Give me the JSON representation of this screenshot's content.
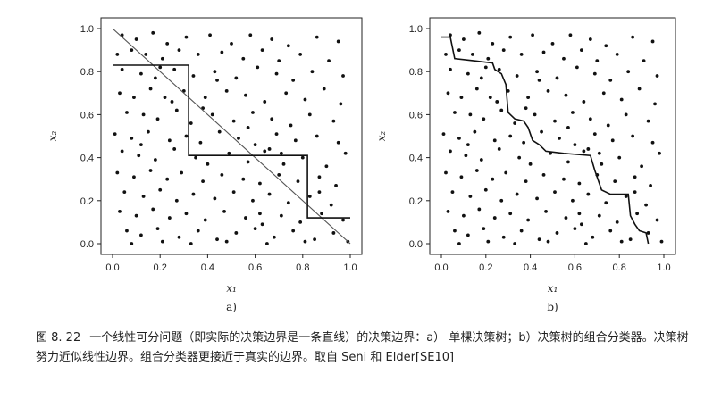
{
  "figure": {
    "number": "图 8. 22",
    "caption": "一个线性可分问题（即实际的决策边界是一条直线）的决策边界：a） 单棵决策树；b）决策树的组合分类器。决策树努力近似线性边界。组合分类器更接近于真实的边界。取自 Seni 和 Elder[SE10]"
  },
  "chart_data": [
    {
      "type": "scatter",
      "panel_label": "a)",
      "xlabel": "x₁",
      "ylabel": "x₂",
      "xlim": [
        0.0,
        1.0
      ],
      "ylim": [
        0.0,
        1.0
      ],
      "xticks": [
        "0.0",
        "0.2",
        "0.4",
        "0.6",
        "0.8",
        "1.0"
      ],
      "yticks": [
        "0.0",
        "0.2",
        "0.4",
        "0.6",
        "0.8",
        "1.0"
      ],
      "grid": false,
      "true_boundary": [
        [
          0.0,
          1.0
        ],
        [
          1.0,
          0.0
        ]
      ],
      "decision_boundary": [
        [
          0.0,
          0.83
        ],
        [
          0.32,
          0.83
        ],
        [
          0.32,
          0.41
        ],
        [
          0.82,
          0.41
        ],
        [
          0.82,
          0.12
        ],
        [
          1.0,
          0.12
        ]
      ]
    },
    {
      "type": "scatter",
      "panel_label": "b)",
      "xlabel": "x₁",
      "ylabel": "x₂",
      "xlim": [
        0.0,
        1.0
      ],
      "ylim": [
        0.0,
        1.0
      ],
      "xticks": [
        "0.0",
        "0.2",
        "0.4",
        "0.6",
        "0.8",
        "1.0"
      ],
      "yticks": [
        "0.0",
        "0.2",
        "0.4",
        "0.6",
        "0.8",
        "1.0"
      ],
      "grid": false,
      "decision_boundary": [
        [
          0.0,
          0.96
        ],
        [
          0.04,
          0.96
        ],
        [
          0.06,
          0.86
        ],
        [
          0.15,
          0.85
        ],
        [
          0.23,
          0.84
        ],
        [
          0.24,
          0.81
        ],
        [
          0.27,
          0.79
        ],
        [
          0.29,
          0.74
        ],
        [
          0.3,
          0.61
        ],
        [
          0.33,
          0.58
        ],
        [
          0.37,
          0.57
        ],
        [
          0.39,
          0.54
        ],
        [
          0.41,
          0.48
        ],
        [
          0.44,
          0.46
        ],
        [
          0.47,
          0.43
        ],
        [
          0.55,
          0.42
        ],
        [
          0.67,
          0.41
        ],
        [
          0.69,
          0.34
        ],
        [
          0.72,
          0.25
        ],
        [
          0.76,
          0.23
        ],
        [
          0.84,
          0.23
        ],
        [
          0.85,
          0.13
        ],
        [
          0.87,
          0.09
        ],
        [
          0.89,
          0.06
        ],
        [
          0.92,
          0.05
        ],
        [
          0.93,
          0.0
        ]
      ]
    }
  ],
  "points": [
    [
      0.04,
      0.97
    ],
    [
      0.1,
      0.95
    ],
    [
      0.17,
      0.98
    ],
    [
      0.23,
      0.93
    ],
    [
      0.31,
      0.96
    ],
    [
      0.41,
      0.97
    ],
    [
      0.5,
      0.93
    ],
    [
      0.58,
      0.97
    ],
    [
      0.67,
      0.95
    ],
    [
      0.74,
      0.92
    ],
    [
      0.86,
      0.96
    ],
    [
      0.95,
      0.94
    ],
    [
      0.02,
      0.88
    ],
    [
      0.08,
      0.9
    ],
    [
      0.14,
      0.88
    ],
    [
      0.21,
      0.86
    ],
    [
      0.28,
      0.9
    ],
    [
      0.36,
      0.88
    ],
    [
      0.46,
      0.89
    ],
    [
      0.55,
      0.86
    ],
    [
      0.63,
      0.9
    ],
    [
      0.7,
      0.85
    ],
    [
      0.79,
      0.88
    ],
    [
      0.91,
      0.85
    ],
    [
      0.04,
      0.81
    ],
    [
      0.12,
      0.79
    ],
    [
      0.18,
      0.77
    ],
    [
      0.26,
      0.81
    ],
    [
      0.34,
      0.78
    ],
    [
      0.43,
      0.8
    ],
    [
      0.52,
      0.77
    ],
    [
      0.61,
      0.82
    ],
    [
      0.69,
      0.79
    ],
    [
      0.76,
      0.76
    ],
    [
      0.84,
      0.8
    ],
    [
      0.97,
      0.78
    ],
    [
      0.03,
      0.7
    ],
    [
      0.09,
      0.68
    ],
    [
      0.16,
      0.72
    ],
    [
      0.22,
      0.68
    ],
    [
      0.3,
      0.71
    ],
    [
      0.39,
      0.68
    ],
    [
      0.48,
      0.71
    ],
    [
      0.56,
      0.69
    ],
    [
      0.64,
      0.66
    ],
    [
      0.73,
      0.7
    ],
    [
      0.81,
      0.67
    ],
    [
      0.89,
      0.72
    ],
    [
      0.96,
      0.65
    ],
    [
      0.06,
      0.61
    ],
    [
      0.13,
      0.6
    ],
    [
      0.19,
      0.58
    ],
    [
      0.27,
      0.62
    ],
    [
      0.33,
      0.56
    ],
    [
      0.42,
      0.6
    ],
    [
      0.51,
      0.57
    ],
    [
      0.59,
      0.61
    ],
    [
      0.67,
      0.58
    ],
    [
      0.75,
      0.55
    ],
    [
      0.83,
      0.6
    ],
    [
      0.93,
      0.57
    ],
    [
      0.01,
      0.51
    ],
    [
      0.08,
      0.49
    ],
    [
      0.15,
      0.52
    ],
    [
      0.24,
      0.48
    ],
    [
      0.31,
      0.5
    ],
    [
      0.37,
      0.47
    ],
    [
      0.45,
      0.52
    ],
    [
      0.53,
      0.49
    ],
    [
      0.6,
      0.46
    ],
    [
      0.69,
      0.51
    ],
    [
      0.77,
      0.48
    ],
    [
      0.86,
      0.5
    ],
    [
      0.95,
      0.47
    ],
    [
      0.04,
      0.43
    ],
    [
      0.11,
      0.41
    ],
    [
      0.18,
      0.39
    ],
    [
      0.26,
      0.44
    ],
    [
      0.35,
      0.4
    ],
    [
      0.4,
      0.37
    ],
    [
      0.49,
      0.42
    ],
    [
      0.57,
      0.38
    ],
    [
      0.64,
      0.43
    ],
    [
      0.72,
      0.37
    ],
    [
      0.8,
      0.4
    ],
    [
      0.9,
      0.36
    ],
    [
      0.98,
      0.42
    ],
    [
      0.02,
      0.33
    ],
    [
      0.09,
      0.31
    ],
    [
      0.16,
      0.34
    ],
    [
      0.23,
      0.3
    ],
    [
      0.29,
      0.33
    ],
    [
      0.38,
      0.29
    ],
    [
      0.46,
      0.32
    ],
    [
      0.55,
      0.3
    ],
    [
      0.62,
      0.28
    ],
    [
      0.7,
      0.32
    ],
    [
      0.78,
      0.29
    ],
    [
      0.87,
      0.31
    ],
    [
      0.94,
      0.27
    ],
    [
      0.05,
      0.24
    ],
    [
      0.13,
      0.22
    ],
    [
      0.2,
      0.25
    ],
    [
      0.27,
      0.2
    ],
    [
      0.34,
      0.23
    ],
    [
      0.43,
      0.21
    ],
    [
      0.51,
      0.24
    ],
    [
      0.59,
      0.2
    ],
    [
      0.66,
      0.23
    ],
    [
      0.74,
      0.19
    ],
    [
      0.83,
      0.22
    ],
    [
      0.92,
      0.18
    ],
    [
      0.03,
      0.15
    ],
    [
      0.1,
      0.13
    ],
    [
      0.17,
      0.16
    ],
    [
      0.24,
      0.12
    ],
    [
      0.31,
      0.14
    ],
    [
      0.39,
      0.11
    ],
    [
      0.47,
      0.15
    ],
    [
      0.56,
      0.12
    ],
    [
      0.63,
      0.09
    ],
    [
      0.71,
      0.13
    ],
    [
      0.79,
      0.1
    ],
    [
      0.88,
      0.14
    ],
    [
      0.97,
      0.11
    ],
    [
      0.06,
      0.06
    ],
    [
      0.12,
      0.04
    ],
    [
      0.19,
      0.07
    ],
    [
      0.28,
      0.03
    ],
    [
      0.36,
      0.06
    ],
    [
      0.44,
      0.02
    ],
    [
      0.52,
      0.05
    ],
    [
      0.6,
      0.07
    ],
    [
      0.68,
      0.03
    ],
    [
      0.76,
      0.06
    ],
    [
      0.85,
      0.02
    ],
    [
      0.93,
      0.05
    ],
    [
      0.08,
      0.0
    ],
    [
      0.21,
      0.01
    ],
    [
      0.33,
      0.0
    ],
    [
      0.48,
      0.01
    ],
    [
      0.65,
      0.0
    ],
    [
      0.81,
      0.01
    ],
    [
      0.99,
      0.01
    ],
    [
      0.2,
      0.82
    ],
    [
      0.38,
      0.63
    ],
    [
      0.57,
      0.54
    ],
    [
      0.66,
      0.44
    ],
    [
      0.71,
      0.42
    ],
    [
      0.87,
      0.24
    ],
    [
      0.25,
      0.66
    ],
    [
      0.12,
      0.46
    ],
    [
      0.44,
      0.76
    ],
    [
      0.62,
      0.14
    ]
  ]
}
